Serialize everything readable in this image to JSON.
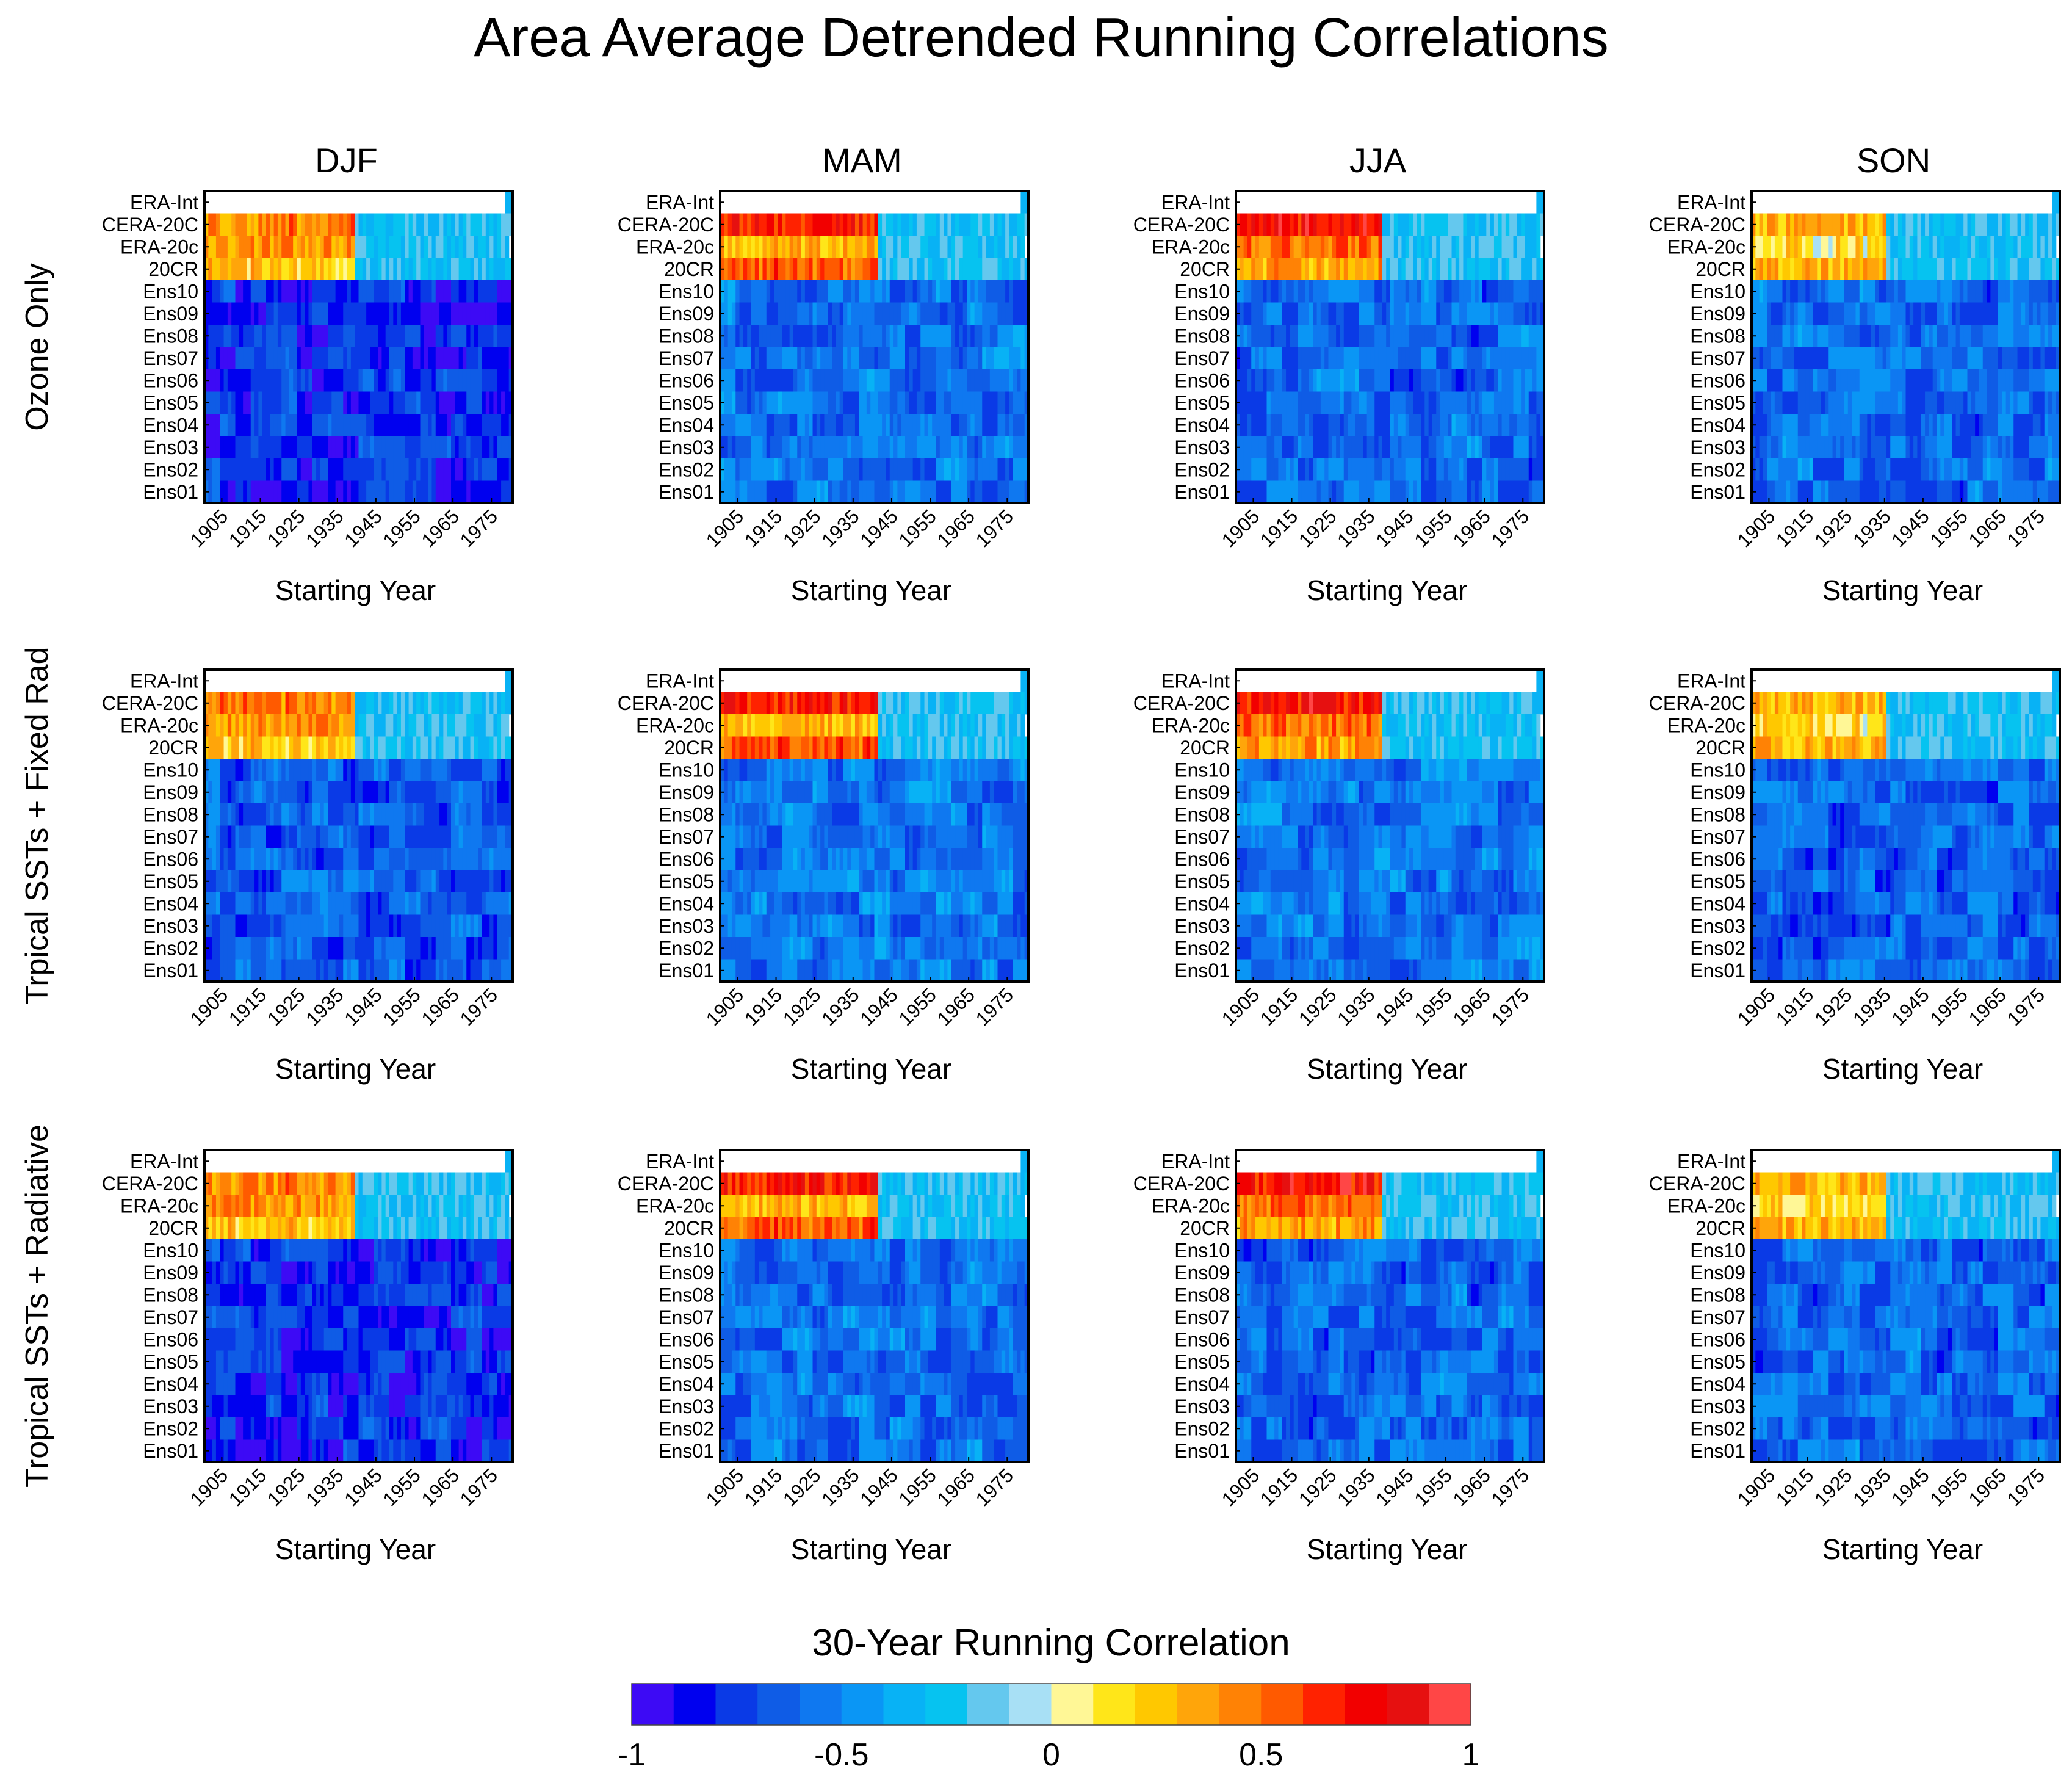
{
  "figure": {
    "title": "Area Average Detrended Running Correlations"
  },
  "chart_data": {
    "type": "heatmap",
    "columns": [
      "DJF",
      "MAM",
      "JJA",
      "SON"
    ],
    "rows": [
      "Ozone Only",
      "Trpical SSTs + Fixed Rad",
      "Tropical SSTs + Radiative"
    ],
    "y_categories": [
      "ERA-Int",
      "CERA-20C",
      "ERA-20c",
      "20CR",
      "Ens10",
      "Ens09",
      "Ens08",
      "Ens07",
      "Ens06",
      "Ens05",
      "Ens04",
      "Ens03",
      "Ens02",
      "Ens01"
    ],
    "x_tick_labels": [
      "1905",
      "1915",
      "1925",
      "1935",
      "1945",
      "1955",
      "1965",
      "1975"
    ],
    "x_start_year": 1901,
    "x_end_year": 1980,
    "xlabel": "Starting Year",
    "colorbar": {
      "title": "30-Year Running Correlation",
      "range": [
        -1,
        1
      ],
      "tick_labels": [
        "-1",
        "-0.5",
        "0",
        "0.5",
        "1"
      ],
      "colors": [
        "#3d0af5",
        "#0000ef",
        "#0a3ae6",
        "#0f5ce6",
        "#0f78f0",
        "#0a96f5",
        "#08b2f5",
        "#06c3f0",
        "#64c8ee",
        "#a8e0f5",
        "#fff796",
        "#ffe619",
        "#ffc800",
        "#ffa50a",
        "#ff8205",
        "#ff5a00",
        "#ff2200",
        "#f20000",
        "#e61010",
        "#ff4646"
      ]
    },
    "reanalysis_period": {
      "ERA-Int": [
        1979,
        1980
      ],
      "CERA-20C": [
        1901,
        1980
      ],
      "ERA-20c": [
        1901,
        1979
      ],
      "20CR": [
        1901,
        1980
      ]
    },
    "reanalysis_profiles": {
      "DJF": {
        "ERA-Int": 0.0,
        "CERA-20C": 0.45,
        "ERA-20c": 0.4,
        "20CR": 0.25
      },
      "MAM": {
        "ERA-Int": 0.0,
        "CERA-20C": 0.7,
        "ERA-20c": 0.3,
        "20CR": 0.55
      },
      "JJA": {
        "ERA-Int": 0.0,
        "CERA-20C": 0.75,
        "ERA-20c": 0.5,
        "20CR": 0.35
      },
      "SON": {
        "ERA-Int": 0.0,
        "CERA-20C": 0.3,
        "ERA-20c": 0.15,
        "20CR": 0.3
      }
    },
    "reanalysis_transition_year": {
      "DJF": 1939,
      "MAM": 1941,
      "JJA": 1938,
      "SON": 1935
    },
    "ensemble_mean": [
      [
        -0.78,
        -0.58,
        -0.6,
        -0.6
      ],
      [
        -0.65,
        -0.55,
        -0.55,
        -0.62
      ],
      [
        -0.78,
        -0.58,
        -0.6,
        -0.6
      ]
    ]
  }
}
